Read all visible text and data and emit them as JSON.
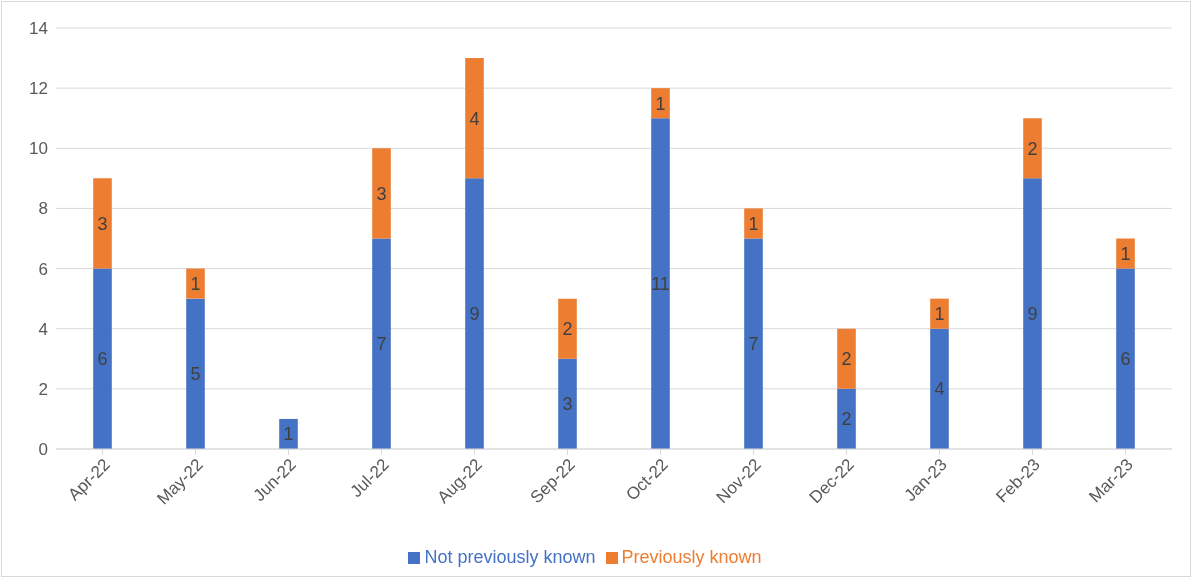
{
  "chart_data": {
    "type": "bar",
    "stacked": true,
    "categories": [
      "Apr-22",
      "May-22",
      "Jun-22",
      "Jul-22",
      "Aug-22",
      "Sep-22",
      "Oct-22",
      "Nov-22",
      "Dec-22",
      "Jan-23",
      "Feb-23",
      "Mar-23"
    ],
    "series": [
      {
        "name": "Not previously known",
        "color": "#4472c4",
        "values": [
          6,
          5,
          1,
          7,
          9,
          3,
          11,
          7,
          2,
          4,
          9,
          6
        ]
      },
      {
        "name": "Previously known",
        "color": "#ed7d31",
        "values": [
          3,
          1,
          null,
          3,
          4,
          2,
          1,
          1,
          2,
          1,
          2,
          1
        ]
      }
    ],
    "ylim": [
      0,
      14
    ],
    "yticks": [
      0,
      2,
      4,
      6,
      8,
      10,
      12,
      14
    ],
    "grid": "y",
    "legend": "bottom",
    "data_labels": true
  }
}
